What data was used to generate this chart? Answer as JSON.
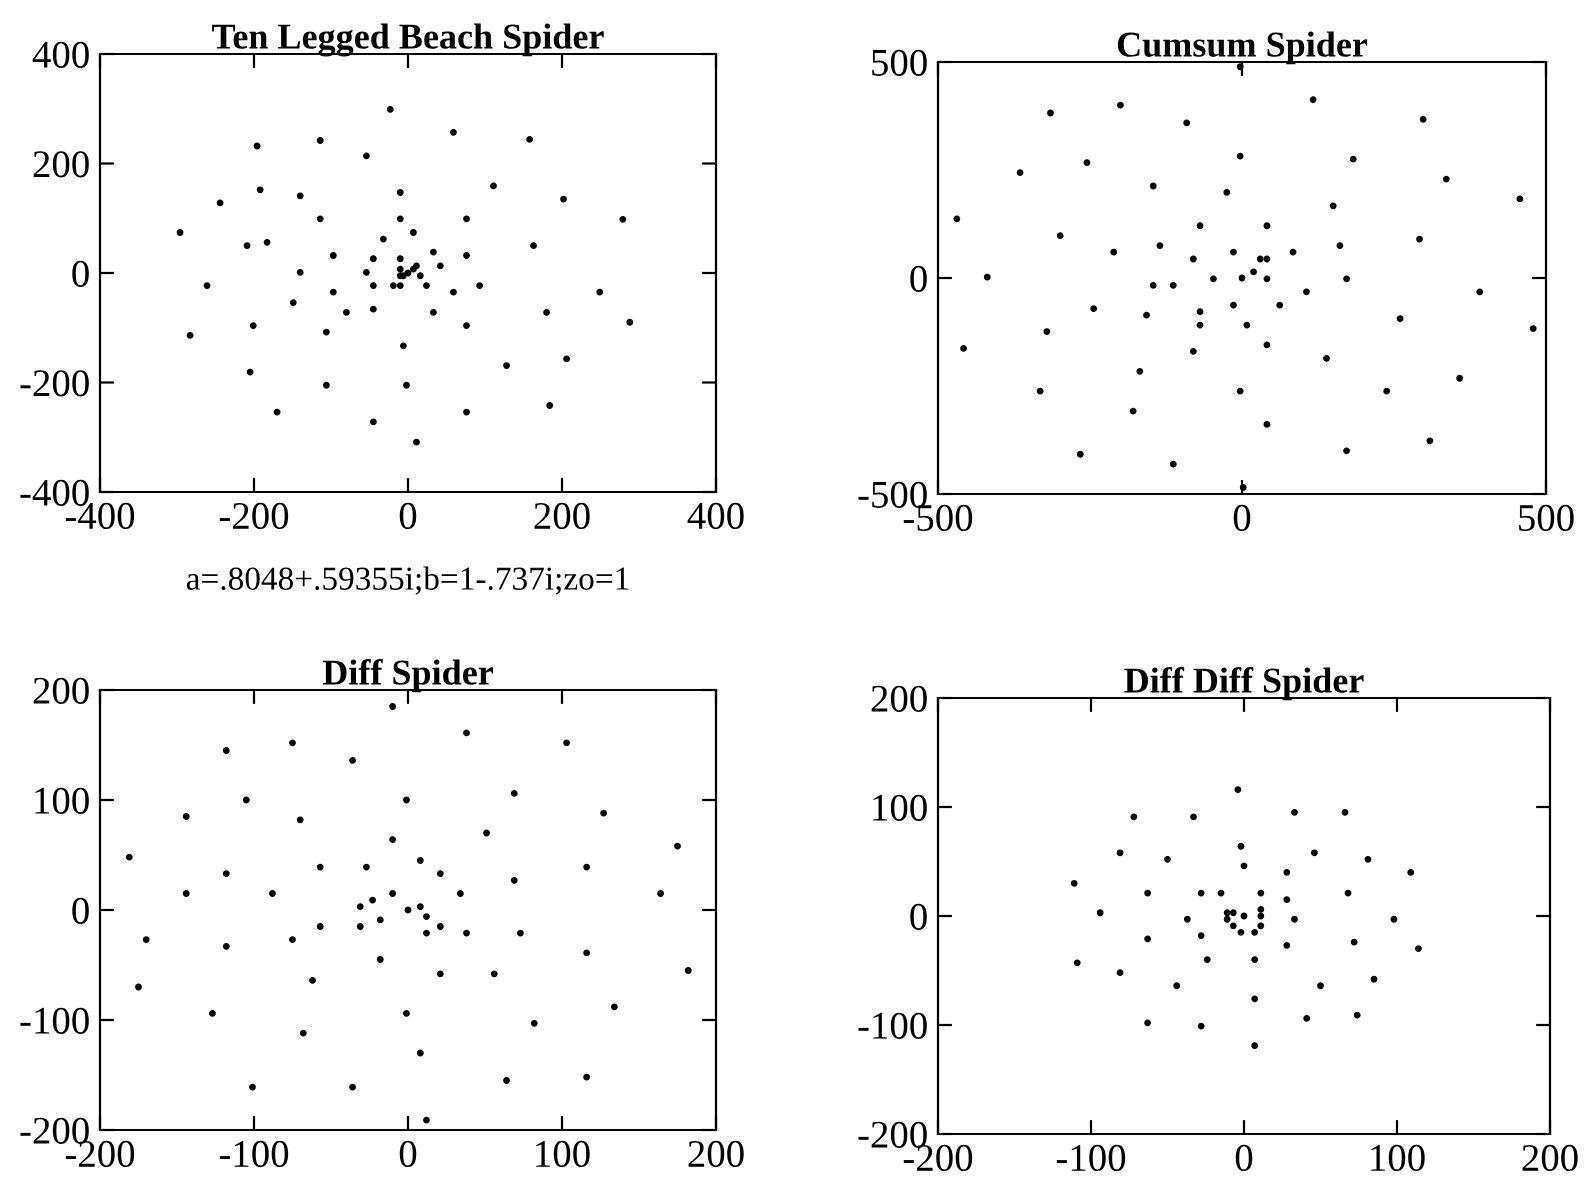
{
  "chart_data": [
    {
      "type": "scatter",
      "title": "Ten Legged Beach Spider",
      "marker": "circle",
      "xlim": [
        -400,
        400
      ],
      "ylim": [
        -400,
        400
      ],
      "xticks": [
        -400,
        -200,
        0,
        200,
        400
      ],
      "yticks": [
        -400,
        -200,
        0,
        200,
        400
      ],
      "annotations": [
        "a=.8048+.59355i;b=1-.737i;zo=1"
      ],
      "series": [
        {
          "color": "#000000",
          "x": [
            -196,
            -114,
            -54,
            -10,
            -10,
            -32,
            -45,
            -10
          ],
          "values": [
            232,
            242,
            214,
            147,
            99,
            62,
            26,
            7
          ]
        },
        {
          "color": "#000000",
          "x": [
            -296,
            -244,
            -192,
            -140,
            -114,
            -97,
            -54,
            -10
          ],
          "values": [
            74,
            128,
            152,
            141,
            99,
            32,
            1,
            -5
          ]
        },
        {
          "color": "#000000",
          "x": [
            -283,
            -261,
            -209,
            -183,
            -140,
            -97,
            -45,
            -6
          ],
          "values": [
            -114,
            -23,
            50,
            56,
            1,
            -35,
            -23,
            -5
          ]
        },
        {
          "color": "#000000",
          "x": [
            -170,
            -205,
            -201,
            -149,
            -80,
            -19
          ],
          "values": [
            -254,
            -181,
            -96,
            -54,
            -72,
            -23
          ]
        },
        {
          "color": "#000000",
          "x": [
            11,
            -45,
            -106,
            -106,
            -45,
            -10
          ],
          "values": [
            -309,
            -272,
            -205,
            -108,
            -66,
            -23
          ]
        },
        {
          "color": "#000000",
          "x": [
            184,
            76,
            -2,
            -6,
            33,
            24
          ],
          "values": [
            -242,
            -254,
            -205,
            -133,
            -72,
            -23
          ]
        },
        {
          "color": "#000000",
          "x": [
            288,
            206,
            128,
            76,
            59,
            16
          ],
          "values": [
            -90,
            -157,
            -169,
            -96,
            -35,
            -5
          ]
        },
        {
          "color": "#000000",
          "x": [
            279,
            249,
            180,
            93,
            42,
            7
          ],
          "values": [
            98,
            -35,
            -72,
            -23,
            13,
            7
          ]
        },
        {
          "color": "#000000",
          "x": [
            158,
            202,
            163,
            76,
            33,
            11
          ],
          "values": [
            244,
            135,
            50,
            32,
            38,
            13
          ]
        },
        {
          "color": "#000000",
          "x": [
            -23,
            59,
            111,
            76,
            7,
            -10,
            0
          ],
          "values": [
            299,
            257,
            159,
            99,
            74,
            26,
            0
          ]
        }
      ]
    },
    {
      "type": "scatter",
      "title": "Cumsum Spider",
      "marker": "circle",
      "xlim": [
        -500,
        500
      ],
      "ylim": [
        -500,
        500
      ],
      "xticks": [
        -500,
        0,
        500
      ],
      "yticks": [
        -500,
        0,
        500
      ],
      "series": [
        {
          "color": "#000000",
          "x": [
            -315,
            -200,
            -91,
            -3,
            -25,
            -69,
            -80,
            -47
          ],
          "values": [
            382,
            400,
            359,
            282,
            198,
            121,
            44,
            -2
          ]
        },
        {
          "color": "#000000",
          "x": [
            -469,
            -365,
            -255,
            -146,
            -135,
            -113
          ],
          "values": [
            137,
            244,
            267,
            213,
            75,
            -17
          ]
        },
        {
          "color": "#000000",
          "x": [
            -458,
            -419,
            -299,
            -211,
            -146,
            -69,
            -14
          ],
          "values": [
            -163,
            2,
            98,
            60,
            -17,
            -78,
            -63
          ]
        },
        {
          "color": "#000000",
          "x": [
            -266,
            -332,
            -321,
            -244,
            -157,
            -69
          ],
          "values": [
            -408,
            -262,
            -124,
            -71,
            -86,
            -109
          ]
        },
        {
          "color": "#000000",
          "x": [
            2,
            -113,
            -179,
            -168,
            -80,
            8
          ],
          "values": [
            -485,
            -431,
            -308,
            -216,
            -170,
            -109
          ]
        },
        {
          "color": "#000000",
          "x": [
            309,
            172,
            41,
            -3,
            41,
            62
          ],
          "values": [
            -377,
            -400,
            -339,
            -262,
            -155,
            -63
          ]
        },
        {
          "color": "#000000",
          "x": [
            479,
            358,
            238,
            139,
            106,
            41
          ],
          "values": [
            -117,
            -232,
            -262,
            -186,
            -32,
            -2
          ]
        },
        {
          "color": "#000000",
          "x": [
            457,
            391,
            260,
            172,
            84,
            30
          ],
          "values": [
            183,
            -32,
            -94,
            -2,
            60,
            44
          ]
        },
        {
          "color": "#000000",
          "x": [
            298,
            336,
            292,
            161,
            41,
            19
          ],
          "values": [
            367,
            229,
            90,
            75,
            44,
            14
          ]
        },
        {
          "color": "#000000",
          "x": [
            -3,
            117,
            183,
            150,
            41,
            -14,
            0
          ],
          "values": [
            489,
            413,
            275,
            167,
            121,
            60,
            0
          ]
        }
      ]
    },
    {
      "type": "scatter",
      "title": "Diff Spider",
      "marker": "circle",
      "xlim": [
        -200,
        200
      ],
      "ylim": [
        -200,
        200
      ],
      "xticks": [
        -200,
        -100,
        0,
        100,
        200
      ],
      "yticks": [
        -200,
        -100,
        0,
        100,
        200
      ],
      "series": [
        {
          "color": "#000000",
          "x": [
            -118,
            -75,
            -36,
            -1,
            -10,
            -27,
            -23
          ],
          "values": [
            145,
            152,
            136,
            100,
            64,
            39,
            9
          ]
        },
        {
          "color": "#000000",
          "x": [
            -181,
            -144,
            -105,
            -70,
            -57,
            -31
          ],
          "values": [
            48,
            85,
            100,
            82,
            39,
            3
          ]
        },
        {
          "color": "#000000",
          "x": [
            -175,
            -170,
            -144,
            -118,
            -88,
            -57,
            -18
          ],
          "values": [
            -70,
            -27,
            15,
            33,
            15,
            -15,
            -9
          ]
        },
        {
          "color": "#000000",
          "x": [
            -101,
            -127,
            -118,
            -75,
            -31
          ],
          "values": [
            -161,
            -94,
            -33,
            -27,
            -15
          ]
        },
        {
          "color": "#000000",
          "x": [
            12,
            -36,
            -68,
            -62,
            -18,
            12
          ],
          "values": [
            -191,
            -161,
            -112,
            -64,
            -45,
            -21
          ]
        },
        {
          "color": "#000000",
          "x": [
            116,
            64,
            8,
            -1,
            21,
            21
          ],
          "values": [
            -152,
            -155,
            -130,
            -94,
            -58,
            -15
          ]
        },
        {
          "color": "#000000",
          "x": [
            182,
            134,
            82,
            56,
            38,
            12
          ],
          "values": [
            -55,
            -88,
            -103,
            -58,
            -21,
            -6
          ]
        },
        {
          "color": "#000000",
          "x": [
            175,
            164,
            116,
            73,
            34,
            8
          ],
          "values": [
            58,
            15,
            -39,
            -21,
            15,
            3
          ]
        },
        {
          "color": "#000000",
          "x": [
            103,
            127,
            116,
            69,
            21
          ],
          "values": [
            152,
            88,
            39,
            27,
            33
          ]
        },
        {
          "color": "#000000",
          "x": [
            -10,
            38,
            69,
            51,
            8,
            -10,
            0
          ],
          "values": [
            185,
            161,
            106,
            70,
            45,
            15,
            0
          ]
        }
      ]
    },
    {
      "type": "scatter",
      "title": "Diff Diff Spider",
      "marker": "circle",
      "xlim": [
        -200,
        200
      ],
      "ylim": [
        -200,
        200
      ],
      "xticks": [
        -200,
        -100,
        0,
        100,
        200
      ],
      "yticks": [
        -200,
        -100,
        0,
        100,
        200
      ],
      "series": [
        {
          "color": "#000000",
          "x": [
            -72,
            -33,
            -2,
            0,
            -15,
            -11
          ],
          "values": [
            91,
            91,
            64,
            46,
            21,
            3
          ]
        },
        {
          "color": "#000000",
          "x": [
            -111,
            -81,
            -50,
            -28,
            -7
          ],
          "values": [
            30,
            58,
            52,
            21,
            3
          ]
        },
        {
          "color": "#000000",
          "x": [
            -109,
            -94,
            -63,
            -37,
            -11
          ],
          "values": [
            -43,
            3,
            21,
            -3,
            -3
          ]
        },
        {
          "color": "#000000",
          "x": [
            -63,
            -81,
            -63,
            -28,
            -7
          ],
          "values": [
            -98,
            -52,
            -21,
            -18,
            -9
          ]
        },
        {
          "color": "#000000",
          "x": [
            7,
            -28,
            -44,
            -24,
            -2
          ],
          "values": [
            -119,
            -101,
            -64,
            -40,
            -15
          ]
        },
        {
          "color": "#000000",
          "x": [
            74,
            41,
            7,
            7,
            7
          ],
          "values": [
            -91,
            -94,
            -76,
            -40,
            -15
          ]
        },
        {
          "color": "#000000",
          "x": [
            114,
            85,
            50,
            28,
            11
          ],
          "values": [
            -30,
            -58,
            -64,
            -27,
            -9
          ]
        },
        {
          "color": "#000000",
          "x": [
            109,
            98,
            72,
            33,
            11
          ],
          "values": [
            40,
            -3,
            -24,
            -3,
            0
          ]
        },
        {
          "color": "#000000",
          "x": [
            66,
            81,
            68,
            28,
            11
          ],
          "values": [
            95,
            52,
            21,
            15,
            6
          ]
        },
        {
          "color": "#000000",
          "x": [
            -4,
            33,
            46,
            28,
            11,
            0
          ],
          "values": [
            116,
            95,
            58,
            40,
            21,
            0
          ]
        }
      ]
    }
  ]
}
